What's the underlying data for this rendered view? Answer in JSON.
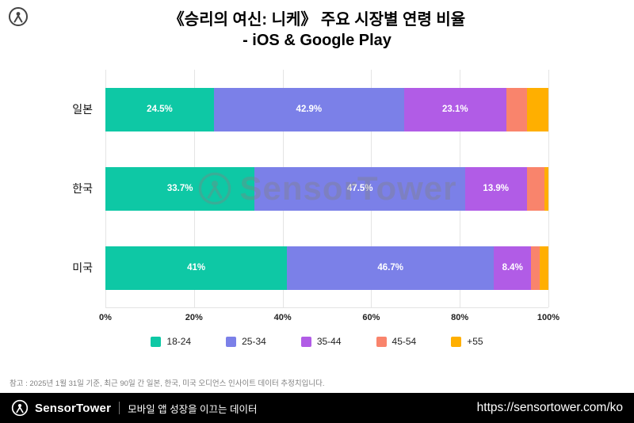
{
  "title": {
    "line1": "《승리의 여신: 니케》 주요 시장별 연령 비율",
    "line2": "- iOS & Google Play"
  },
  "chart_data": {
    "type": "bar",
    "orientation": "horizontal",
    "stacked": true,
    "categories": [
      "일본",
      "한국",
      "미국"
    ],
    "series": [
      {
        "name": "18-24",
        "color": "#0EC8A5",
        "values": [
          24.5,
          33.7,
          41.0
        ]
      },
      {
        "name": "25-34",
        "color": "#7B80E8",
        "values": [
          42.9,
          47.5,
          46.7
        ]
      },
      {
        "name": "35-44",
        "color": "#B15CE6",
        "values": [
          23.1,
          13.9,
          8.4
        ]
      },
      {
        "name": "45-54",
        "color": "#F9846C",
        "values": [
          4.6,
          4.1,
          2.0
        ]
      },
      {
        "name": "+55",
        "color": "#FFAF00",
        "values": [
          4.9,
          0.8,
          1.9
        ]
      }
    ],
    "labels": [
      [
        "24.5%",
        "42.9%",
        "23.1%",
        "",
        ""
      ],
      [
        "33.7%",
        "47.5%",
        "13.9%",
        "",
        ""
      ],
      [
        "41%",
        "46.7%",
        "8.4%",
        "",
        ""
      ]
    ],
    "x_ticks": [
      "0%",
      "20%",
      "40%",
      "60%",
      "80%",
      "100%"
    ],
    "xlim": [
      0,
      100
    ],
    "legend_position": "bottom",
    "grid": true
  },
  "watermark": "SensorTower",
  "footnote": "참고 : 2025년 1월 31일 기준, 최근 90일 간 일본, 한국, 미국 오디언스 인사이트 데이터 추정치입니다.",
  "footer": {
    "brand": "SensorTower",
    "tagline": "모바일 앱 성장을 이끄는 데이터",
    "url": "https://sensortower.com/ko"
  }
}
